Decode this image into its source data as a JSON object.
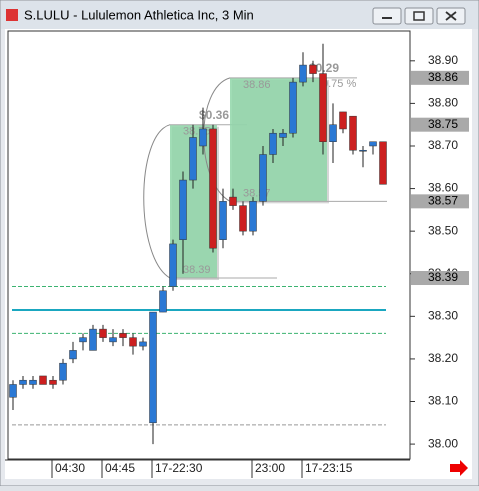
{
  "chart_data": {
    "type": "candlestick",
    "title": "S.LULU - Lululemon Athletica Inc, 3 Min",
    "categories": [
      null,
      null,
      null,
      null,
      "04:30",
      null,
      null,
      null,
      null,
      "04:45",
      null,
      null,
      null,
      null,
      "17-22:30",
      null,
      null,
      null,
      null,
      null,
      null,
      null,
      null,
      null,
      "23:00",
      null,
      null,
      null,
      null,
      "17-23:15",
      null,
      null,
      null,
      null,
      null,
      null,
      null,
      null
    ],
    "open": [
      38.11,
      38.14,
      38.14,
      38.16,
      38.15,
      38.15,
      38.2,
      38.24,
      38.22,
      38.27,
      38.24,
      38.26,
      38.25,
      38.23,
      38.05,
      38.31,
      38.37,
      38.48,
      38.62,
      38.7,
      38.74,
      38.48,
      38.58,
      38.56,
      38.5,
      38.57,
      38.68,
      38.72,
      38.73,
      38.85,
      38.89,
      38.87,
      38.71,
      38.78,
      38.77,
      38.69,
      38.7,
      38.71
    ],
    "high": [
      38.15,
      38.16,
      38.16,
      38.16,
      38.16,
      38.2,
      38.24,
      38.26,
      38.28,
      38.28,
      38.27,
      38.27,
      38.26,
      38.25,
      38.31,
      38.37,
      38.48,
      38.64,
      38.75,
      38.79,
      38.75,
      38.6,
      38.6,
      38.57,
      38.58,
      38.7,
      38.74,
      38.74,
      38.86,
      38.92,
      38.9,
      38.94,
      38.8,
      38.78,
      38.77,
      38.7,
      38.71,
      38.71
    ],
    "low": [
      38.08,
      38.13,
      38.13,
      38.14,
      38.13,
      38.14,
      38.19,
      38.22,
      38.22,
      38.24,
      38.23,
      38.23,
      38.21,
      38.22,
      38.0,
      38.31,
      38.36,
      38.4,
      38.6,
      38.68,
      38.45,
      38.46,
      38.55,
      38.49,
      38.49,
      38.56,
      38.66,
      38.7,
      38.72,
      38.84,
      38.85,
      38.68,
      38.66,
      38.73,
      38.68,
      38.65,
      38.68,
      38.61
    ],
    "close": [
      38.14,
      38.15,
      38.15,
      38.14,
      38.14,
      38.19,
      38.22,
      38.25,
      38.27,
      38.25,
      38.25,
      38.25,
      38.23,
      38.24,
      38.31,
      38.36,
      38.47,
      38.62,
      38.72,
      38.74,
      38.46,
      38.57,
      38.56,
      38.5,
      38.57,
      38.68,
      38.73,
      38.73,
      38.85,
      38.89,
      38.87,
      38.71,
      38.75,
      38.74,
      38.69,
      38.69,
      38.71,
      38.61
    ],
    "up_color": "#2a78d4",
    "down_color": "#cc2020",
    "ylim": [
      37.965,
      38.97
    ],
    "yticks": [
      {
        "value": 38.0,
        "label": "38.00"
      },
      {
        "value": 38.1,
        "label": "38.10"
      },
      {
        "value": 38.2,
        "label": "38.20"
      },
      {
        "value": 38.3,
        "label": "38.30"
      },
      {
        "value": 38.4,
        "label": "38.40"
      },
      {
        "value": 38.5,
        "label": "38.50"
      },
      {
        "value": 38.6,
        "label": "38.60"
      },
      {
        "value": 38.7,
        "label": "38.70"
      },
      {
        "value": 38.8,
        "label": "38.80"
      },
      {
        "value": 38.9,
        "label": "38.90"
      }
    ],
    "price_markers": [
      {
        "value": 38.86,
        "label": "38.86"
      },
      {
        "value": 38.75,
        "label": "38.75"
      },
      {
        "value": 38.57,
        "label": "38.57"
      },
      {
        "value": 38.39,
        "label": "38.39"
      }
    ],
    "horizontal_lines": [
      {
        "value": 38.37,
        "color": "#3cb371",
        "style": "dashed"
      },
      {
        "value": 38.315,
        "color": "#1aa7c0",
        "style": "solid"
      },
      {
        "value": 38.26,
        "color": "#3cb371",
        "style": "dashed"
      },
      {
        "value": 38.045,
        "color": "#999999",
        "style": "dashed"
      }
    ],
    "measure_boxes": [
      {
        "from": 16,
        "to": 20,
        "high": {
          "value": 38.75,
          "label": "38.75"
        },
        "low": {
          "value": 38.39,
          "label": "38.39"
        },
        "change": "$0.36"
      },
      {
        "from": 22,
        "to": 31,
        "high": {
          "value": 38.86,
          "label": "38.86"
        },
        "low": {
          "value": 38.57,
          "label": "38.57"
        },
        "change": "$0.29",
        "percent": "0.75 %"
      }
    ]
  }
}
